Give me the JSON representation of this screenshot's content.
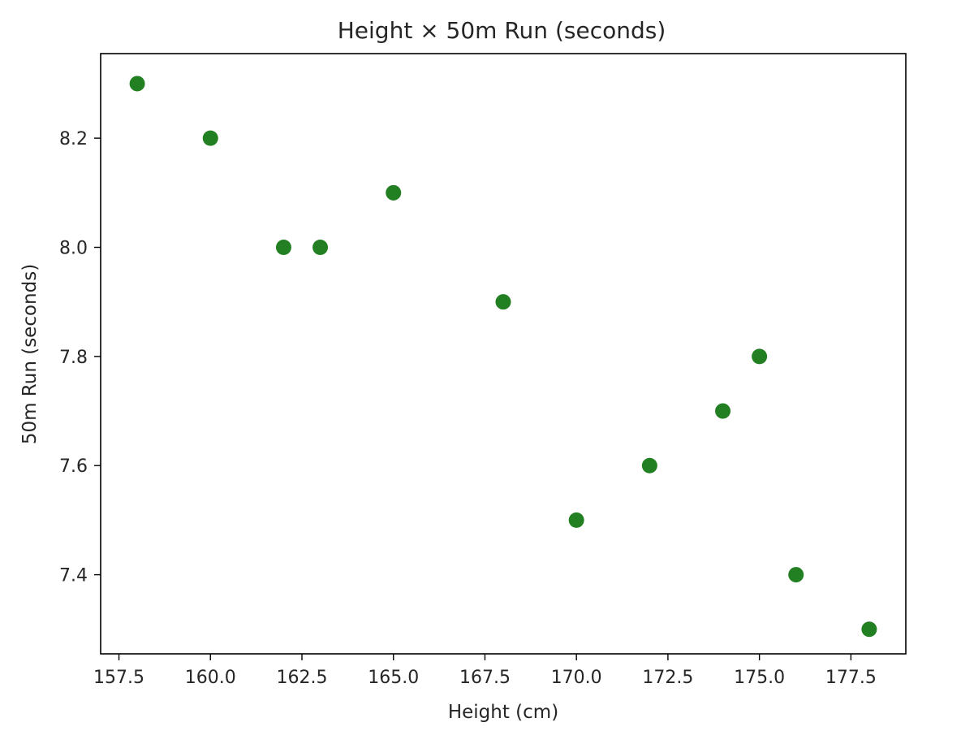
{
  "chart_data": {
    "type": "scatter",
    "title": "Height × 50m Run (seconds)",
    "xlabel": "Height (cm)",
    "ylabel": "50m Run (seconds)",
    "xlim": [
      157.0,
      179.0
    ],
    "ylim": [
      7.255,
      8.355
    ],
    "xticks": [
      "157.5",
      "160.0",
      "162.5",
      "165.0",
      "167.5",
      "170.0",
      "172.5",
      "175.0",
      "177.5"
    ],
    "yticks": [
      "7.4",
      "7.6",
      "7.8",
      "8.0",
      "8.2"
    ],
    "grid": false,
    "color": "#228022",
    "points": [
      {
        "x": 158,
        "y": 8.3
      },
      {
        "x": 160,
        "y": 8.2
      },
      {
        "x": 162,
        "y": 8.0
      },
      {
        "x": 163,
        "y": 8.0
      },
      {
        "x": 165,
        "y": 8.1
      },
      {
        "x": 168,
        "y": 7.9
      },
      {
        "x": 170,
        "y": 7.5
      },
      {
        "x": 172,
        "y": 7.6
      },
      {
        "x": 174,
        "y": 7.7
      },
      {
        "x": 175,
        "y": 7.8
      },
      {
        "x": 176,
        "y": 7.4
      },
      {
        "x": 178,
        "y": 7.3
      }
    ]
  }
}
